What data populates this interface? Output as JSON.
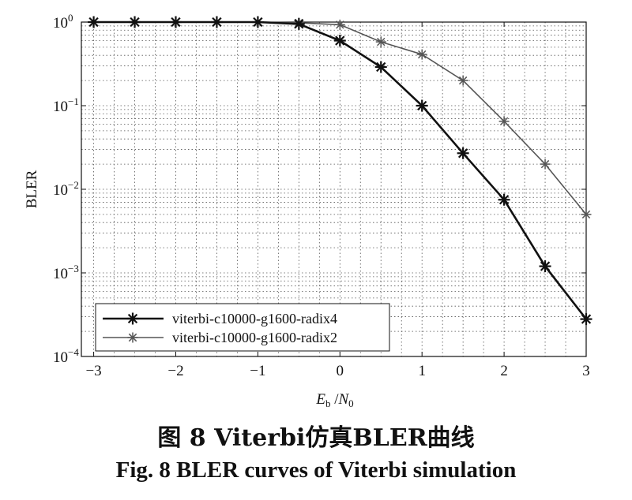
{
  "chart_data": {
    "type": "line",
    "xlabel": "E_b /N_0",
    "xlabel_parts": {
      "e": "E",
      "b": "b",
      "sep": " /",
      "n": "N",
      "zero": "0"
    },
    "ylabel": "BLER",
    "xlim": [
      -3.15,
      3
    ],
    "ylim": [
      0.0001,
      1
    ],
    "yscale": "log",
    "grid": true,
    "legend_position": "lower-left",
    "x_ticks": [
      "−3",
      "−2",
      "−1",
      "0",
      "1",
      "2",
      "3"
    ],
    "x_tick_values": [
      -3,
      -2,
      -1,
      0,
      1,
      2,
      3
    ],
    "y_ticks": [
      {
        "value": 1,
        "base": "10",
        "exp": "0"
      },
      {
        "value": 0.1,
        "base": "10",
        "exp": "−1"
      },
      {
        "value": 0.01,
        "base": "10",
        "exp": "−2"
      },
      {
        "value": 0.001,
        "base": "10",
        "exp": "−3"
      },
      {
        "value": 0.0001,
        "base": "10",
        "exp": "−4"
      }
    ],
    "series": [
      {
        "name": "viterbi-c10000-g1600-radix4",
        "color": "#111111",
        "x": [
          -3,
          -2.5,
          -2,
          -1.5,
          -1,
          -0.5,
          0,
          0.5,
          1,
          1.5,
          2,
          2.5,
          3
        ],
        "y": [
          1,
          1,
          1,
          1,
          1,
          0.95,
          0.6,
          0.29,
          0.1,
          0.027,
          0.0075,
          0.0012,
          0.00028
        ]
      },
      {
        "name": "viterbi-c10000-g1600-radix2",
        "color": "#555555",
        "x": [
          -3,
          -2.5,
          -2,
          -1.5,
          -1,
          -0.5,
          0,
          0.5,
          1,
          1.5,
          2,
          2.5,
          3
        ],
        "y": [
          1,
          1,
          1,
          1,
          1,
          0.98,
          0.93,
          0.58,
          0.41,
          0.2,
          0.065,
          0.02,
          0.005
        ]
      }
    ]
  },
  "caption": {
    "cn": "图 8  Viterbi仿真BLER曲线",
    "en": "Fig. 8  BLER curves of Viterbi simulation"
  }
}
